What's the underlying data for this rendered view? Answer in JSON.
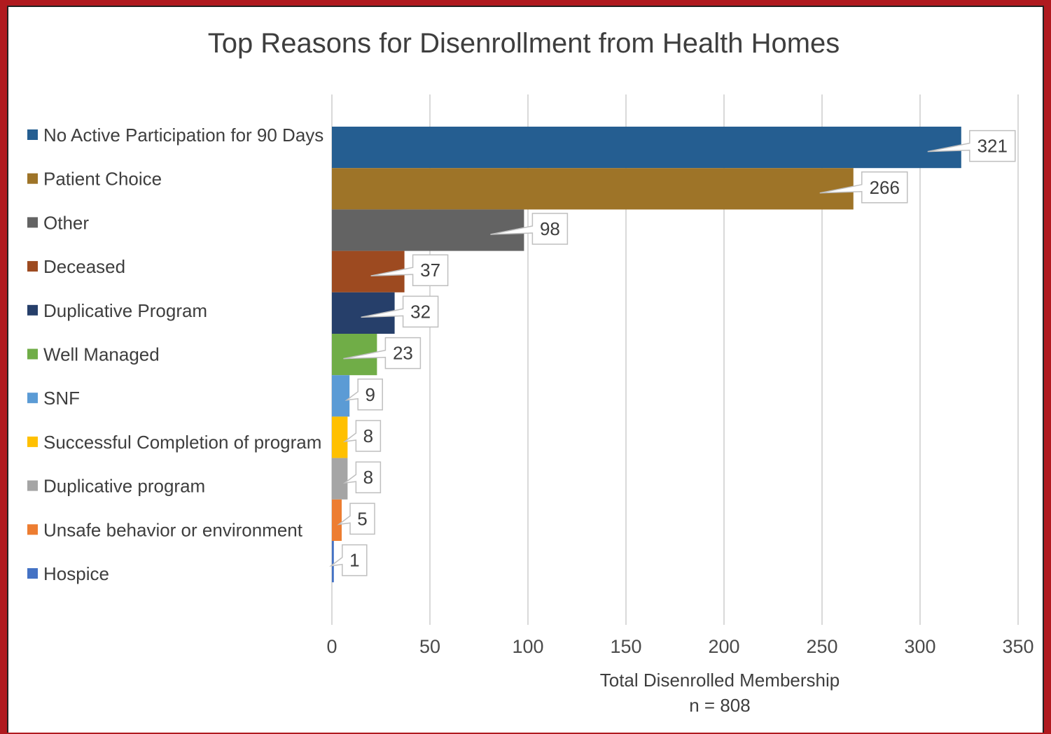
{
  "chart_data": {
    "type": "bar",
    "orientation": "horizontal",
    "title": "Top Reasons for Disenrollment from Health Homes",
    "xlabel": "Total Disenrolled Membership",
    "xlabel_note": "n = 808",
    "ylabel": "",
    "xlim": [
      0,
      350
    ],
    "x_ticks": [
      0,
      50,
      100,
      150,
      200,
      250,
      300,
      350
    ],
    "grid": "vertical",
    "legend_position": "left",
    "categories": [
      "No Active Participation for 90 Days",
      "Patient Choice",
      "Other",
      "Deceased",
      "Duplicative Program",
      "Well Managed",
      "SNF",
      "Successful Completion of program",
      "Duplicative program",
      "Unsafe behavior or environment",
      "Hospice"
    ],
    "values": [
      321,
      266,
      98,
      37,
      32,
      23,
      9,
      8,
      8,
      5,
      1
    ],
    "colors": [
      "#255e91",
      "#9e7428",
      "#636363",
      "#9d4a20",
      "#263f6a",
      "#70ad47",
      "#5b9bd5",
      "#ffc000",
      "#a5a5a5",
      "#ed7d31",
      "#4472c4"
    ]
  }
}
